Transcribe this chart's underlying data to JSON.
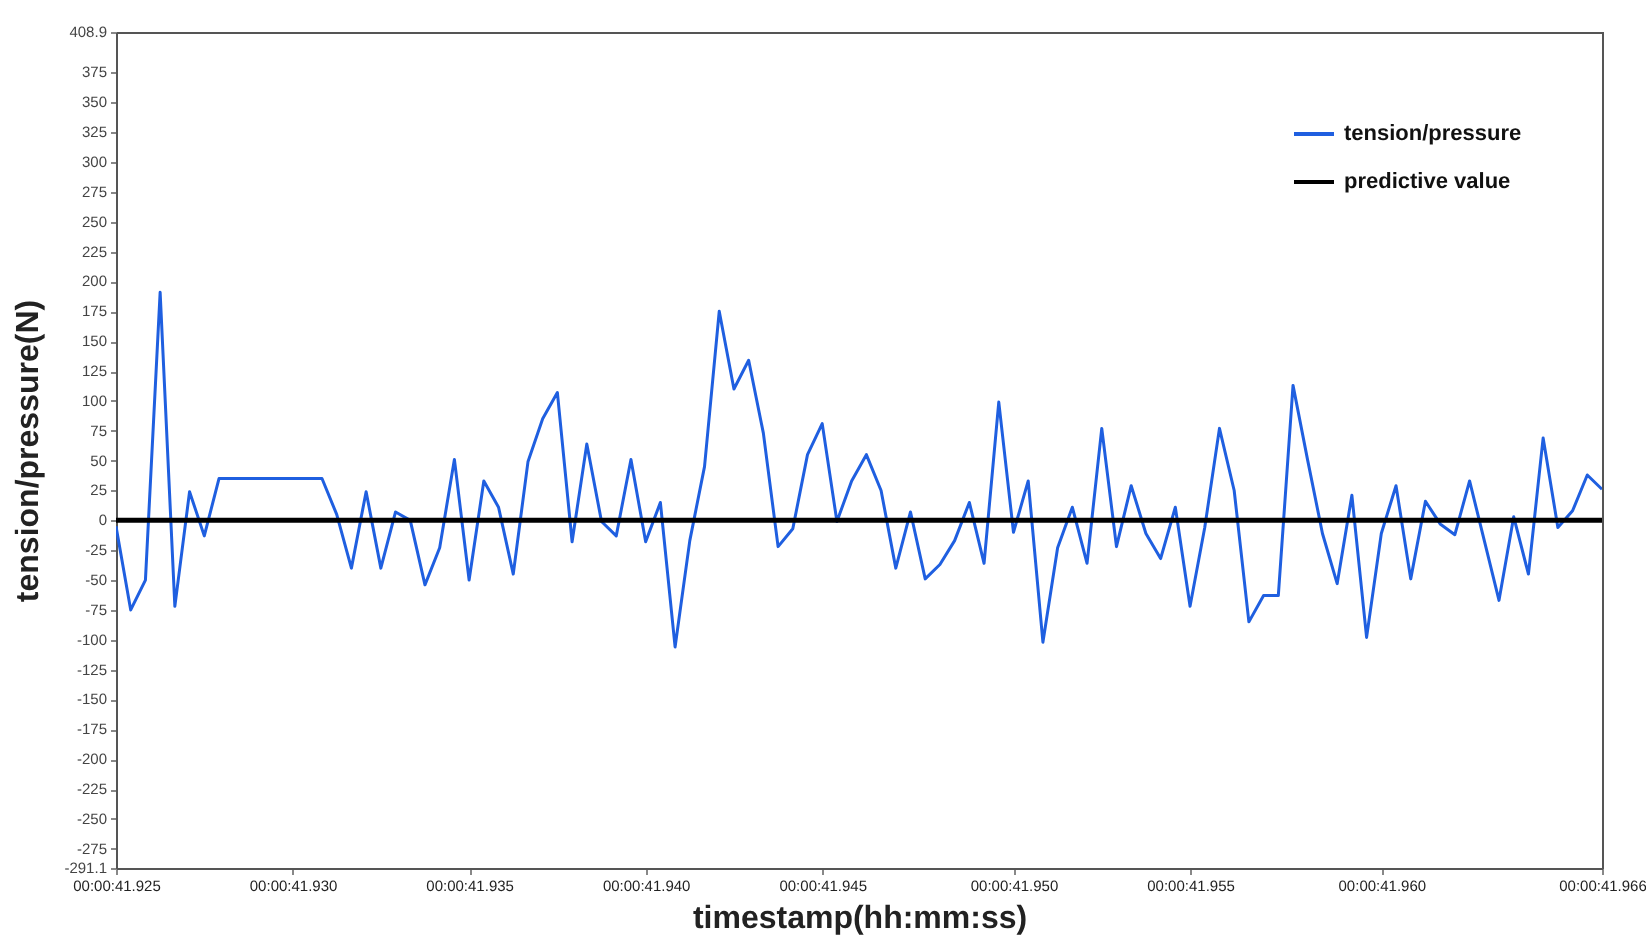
{
  "chart_data": {
    "type": "line",
    "xlabel": "timestamp(hh:mm:ss)",
    "ylabel": "tension/pressure(N)",
    "categories": [
      "00:00:41.925",
      null,
      null,
      null,
      null,
      null,
      null,
      null,
      null,
      null,
      null,
      null,
      "00:00:41.930",
      null,
      null,
      null,
      null,
      null,
      null,
      null,
      null,
      null,
      null,
      null,
      "00:00:41.935",
      null,
      null,
      null,
      null,
      null,
      null,
      null,
      null,
      null,
      null,
      null,
      "00:00:41.940",
      null,
      null,
      null,
      null,
      null,
      null,
      null,
      null,
      null,
      null,
      null,
      "00:00:41.945",
      null,
      null,
      null,
      null,
      null,
      null,
      null,
      null,
      null,
      null,
      null,
      null,
      "00:00:41.950",
      null,
      null,
      null,
      null,
      null,
      null,
      null,
      null,
      null,
      null,
      null,
      "00:00:41.955",
      null,
      null,
      null,
      null,
      null,
      null,
      null,
      null,
      null,
      null,
      null,
      null,
      "00:00:41.960",
      null,
      null,
      null,
      null,
      null,
      null,
      null,
      null,
      null,
      null,
      null,
      null,
      null,
      null,
      "00:00:41.966"
    ],
    "ylim": [
      -291.1,
      408.9
    ],
    "yticks": [
      -291.1,
      -275,
      -250,
      -225,
      -200,
      -175,
      -150,
      -125,
      -100,
      -75,
      -50,
      -25,
      0,
      25,
      50,
      75,
      100,
      125,
      150,
      175,
      200,
      225,
      250,
      275,
      300,
      325,
      350,
      375,
      408.9
    ],
    "grid": false,
    "legend": "top right",
    "line_style": "solid",
    "marker": "none",
    "series": [
      {
        "name": "tension/pressure",
        "color": "#1f5fe0",
        "values": [
          -5,
          -75,
          -50,
          191,
          -72,
          24,
          -13,
          35,
          35,
          35,
          35,
          35,
          35,
          35,
          35,
          5,
          -40,
          24,
          -40,
          7,
          0,
          -54,
          -23,
          51,
          -50,
          33,
          11,
          -45,
          49,
          85,
          107,
          -18,
          64,
          -1,
          -13,
          51,
          -18,
          15,
          -106,
          -17,
          45,
          175,
          110,
          134,
          73,
          -22,
          -7,
          55,
          81,
          -1,
          33,
          55,
          25,
          -40,
          7,
          -49,
          -37,
          -17,
          15,
          -36,
          99,
          -10,
          33,
          -102,
          -23,
          11,
          -36,
          77,
          -22,
          29,
          -11,
          -32,
          11,
          -72,
          -6,
          77,
          25,
          -85,
          -63,
          -63,
          113,
          50,
          -11,
          -53,
          21,
          -98,
          -11,
          29,
          -49,
          16,
          -3,
          -12,
          33,
          -17,
          -67,
          3,
          -45,
          69,
          -6,
          8,
          38,
          26
        ]
      },
      {
        "name": "predictive value",
        "color": "#000000",
        "values": [
          0,
          0,
          0,
          0,
          0,
          0,
          0,
          0,
          0,
          0,
          0,
          0,
          0,
          0,
          0,
          0,
          0,
          0,
          0,
          0,
          0,
          0,
          0,
          0,
          0,
          0,
          0,
          0,
          0,
          0,
          0,
          0,
          0,
          0,
          0,
          0,
          0,
          0,
          0,
          0,
          0,
          0,
          0,
          0,
          0,
          0,
          0,
          0,
          0,
          0,
          0,
          0,
          0,
          0,
          0,
          0,
          0,
          0,
          0,
          0,
          0,
          0,
          0,
          0,
          0,
          0,
          0,
          0,
          0,
          0,
          0,
          0,
          0,
          0,
          0,
          0,
          0,
          0,
          0,
          0,
          0,
          0,
          0,
          0,
          0,
          0,
          0,
          0,
          0,
          0,
          0,
          0,
          0,
          0,
          0,
          0,
          0,
          0,
          0,
          0,
          0,
          0
        ]
      }
    ]
  }
}
